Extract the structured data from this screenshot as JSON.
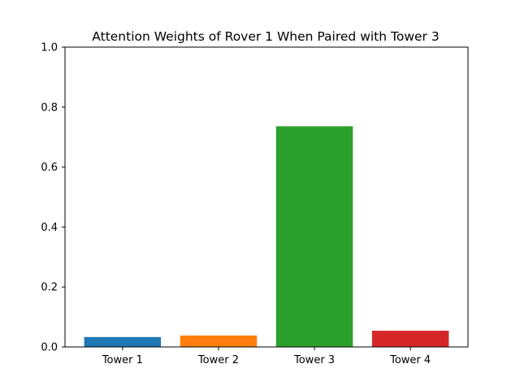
{
  "chart_data": {
    "type": "bar",
    "title": "Attention Weights of Rover 1 When Paired with Tower 3",
    "xlabel": "",
    "ylabel": "",
    "categories": [
      "Tower 1",
      "Tower 2",
      "Tower 3",
      "Tower 4"
    ],
    "values": [
      0.033,
      0.038,
      0.736,
      0.054
    ],
    "colors": [
      "#1f77b4",
      "#ff7f0e",
      "#2ca02c",
      "#d62728"
    ],
    "ylim": [
      0,
      1.0
    ],
    "yticks": [
      0.0,
      0.2,
      0.4,
      0.6,
      0.8,
      1.0
    ],
    "ytick_labels": [
      "0.0",
      "0.2",
      "0.4",
      "0.6",
      "0.8",
      "1.0"
    ],
    "grid": false,
    "legend": "none"
  }
}
